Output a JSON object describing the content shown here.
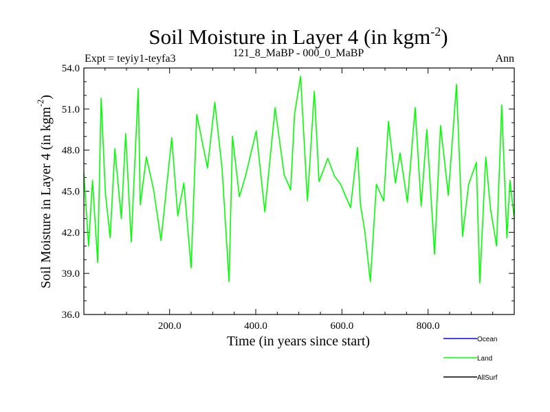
{
  "chart_data": {
    "type": "line",
    "title_main": "Soil Moisture in Layer 4 (in kgm",
    "title_sup": "-2",
    "title_close": ")",
    "subtitle_left": "Expt = teyiy1-teyfa3",
    "subtitle_center": "121_8_MaBP - 000_0_MaBP",
    "subtitle_right": "Ann",
    "xlabel": "Time (in years since start)",
    "ylabel_main": "Soil Moisture in Layer 4 (in kgm",
    "ylabel_sup": "-2",
    "ylabel_close": ")",
    "xlim": [
      1,
      1000
    ],
    "ylim": [
      36.0,
      54.0
    ],
    "x_ticks": [
      200,
      400,
      600,
      800
    ],
    "x_tick_labels": [
      "200.0",
      "400.0",
      "600.0",
      "800.0"
    ],
    "y_ticks": [
      36,
      39,
      42,
      45,
      48,
      51,
      54
    ],
    "y_tick_labels": [
      "36.0",
      "39.0",
      "42.0",
      "45.0",
      "48.0",
      "51.0",
      "54.0"
    ],
    "legend": [
      {
        "name": "Ocean",
        "color": "#0000ff"
      },
      {
        "name": "Land",
        "color": "#00ff00"
      },
      {
        "name": "AllSurf",
        "color": "#000000"
      }
    ],
    "series": [
      {
        "name": "Land",
        "color": "#00ff00",
        "x": [
          1,
          12,
          21,
          33,
          41,
          51,
          62,
          73,
          88,
          98,
          111,
          127,
          132,
          146,
          163,
          180,
          205,
          219,
          233,
          250,
          263,
          288,
          305,
          322,
          338,
          346,
          362,
          377,
          401,
          421,
          445,
          466,
          481,
          490,
          504,
          520,
          536,
          547,
          567,
          583,
          597,
          620,
          636,
          643,
          653,
          666,
          680,
          697,
          708,
          724,
          735,
          752,
          770,
          784,
          797,
          803,
          815,
          829,
          847,
          866,
          880,
          894,
          912,
          920,
          934,
          945,
          959,
          971,
          983,
          990,
          1000
        ],
        "y": [
          46.3,
          41.0,
          45.8,
          39.8,
          51.8,
          44.9,
          41.6,
          48.1,
          43.0,
          49.2,
          41.3,
          52.5,
          44.0,
          47.5,
          45.1,
          41.4,
          48.9,
          43.2,
          45.6,
          39.4,
          50.6,
          46.7,
          51.5,
          46.6,
          38.4,
          49.0,
          44.6,
          46.2,
          49.4,
          43.5,
          51.1,
          46.2,
          45.1,
          50.6,
          53.4,
          44.3,
          52.3,
          45.7,
          47.4,
          46.1,
          45.5,
          43.8,
          48.2,
          44.0,
          42.1,
          38.4,
          45.5,
          44.3,
          50.1,
          45.6,
          47.8,
          44.2,
          51.1,
          43.9,
          49.5,
          46.5,
          40.4,
          49.8,
          44.7,
          52.8,
          41.7,
          45.5,
          47.1,
          38.3,
          47.5,
          43.7,
          41.0,
          51.3,
          41.6,
          45.8,
          43.0
        ]
      }
    ]
  }
}
